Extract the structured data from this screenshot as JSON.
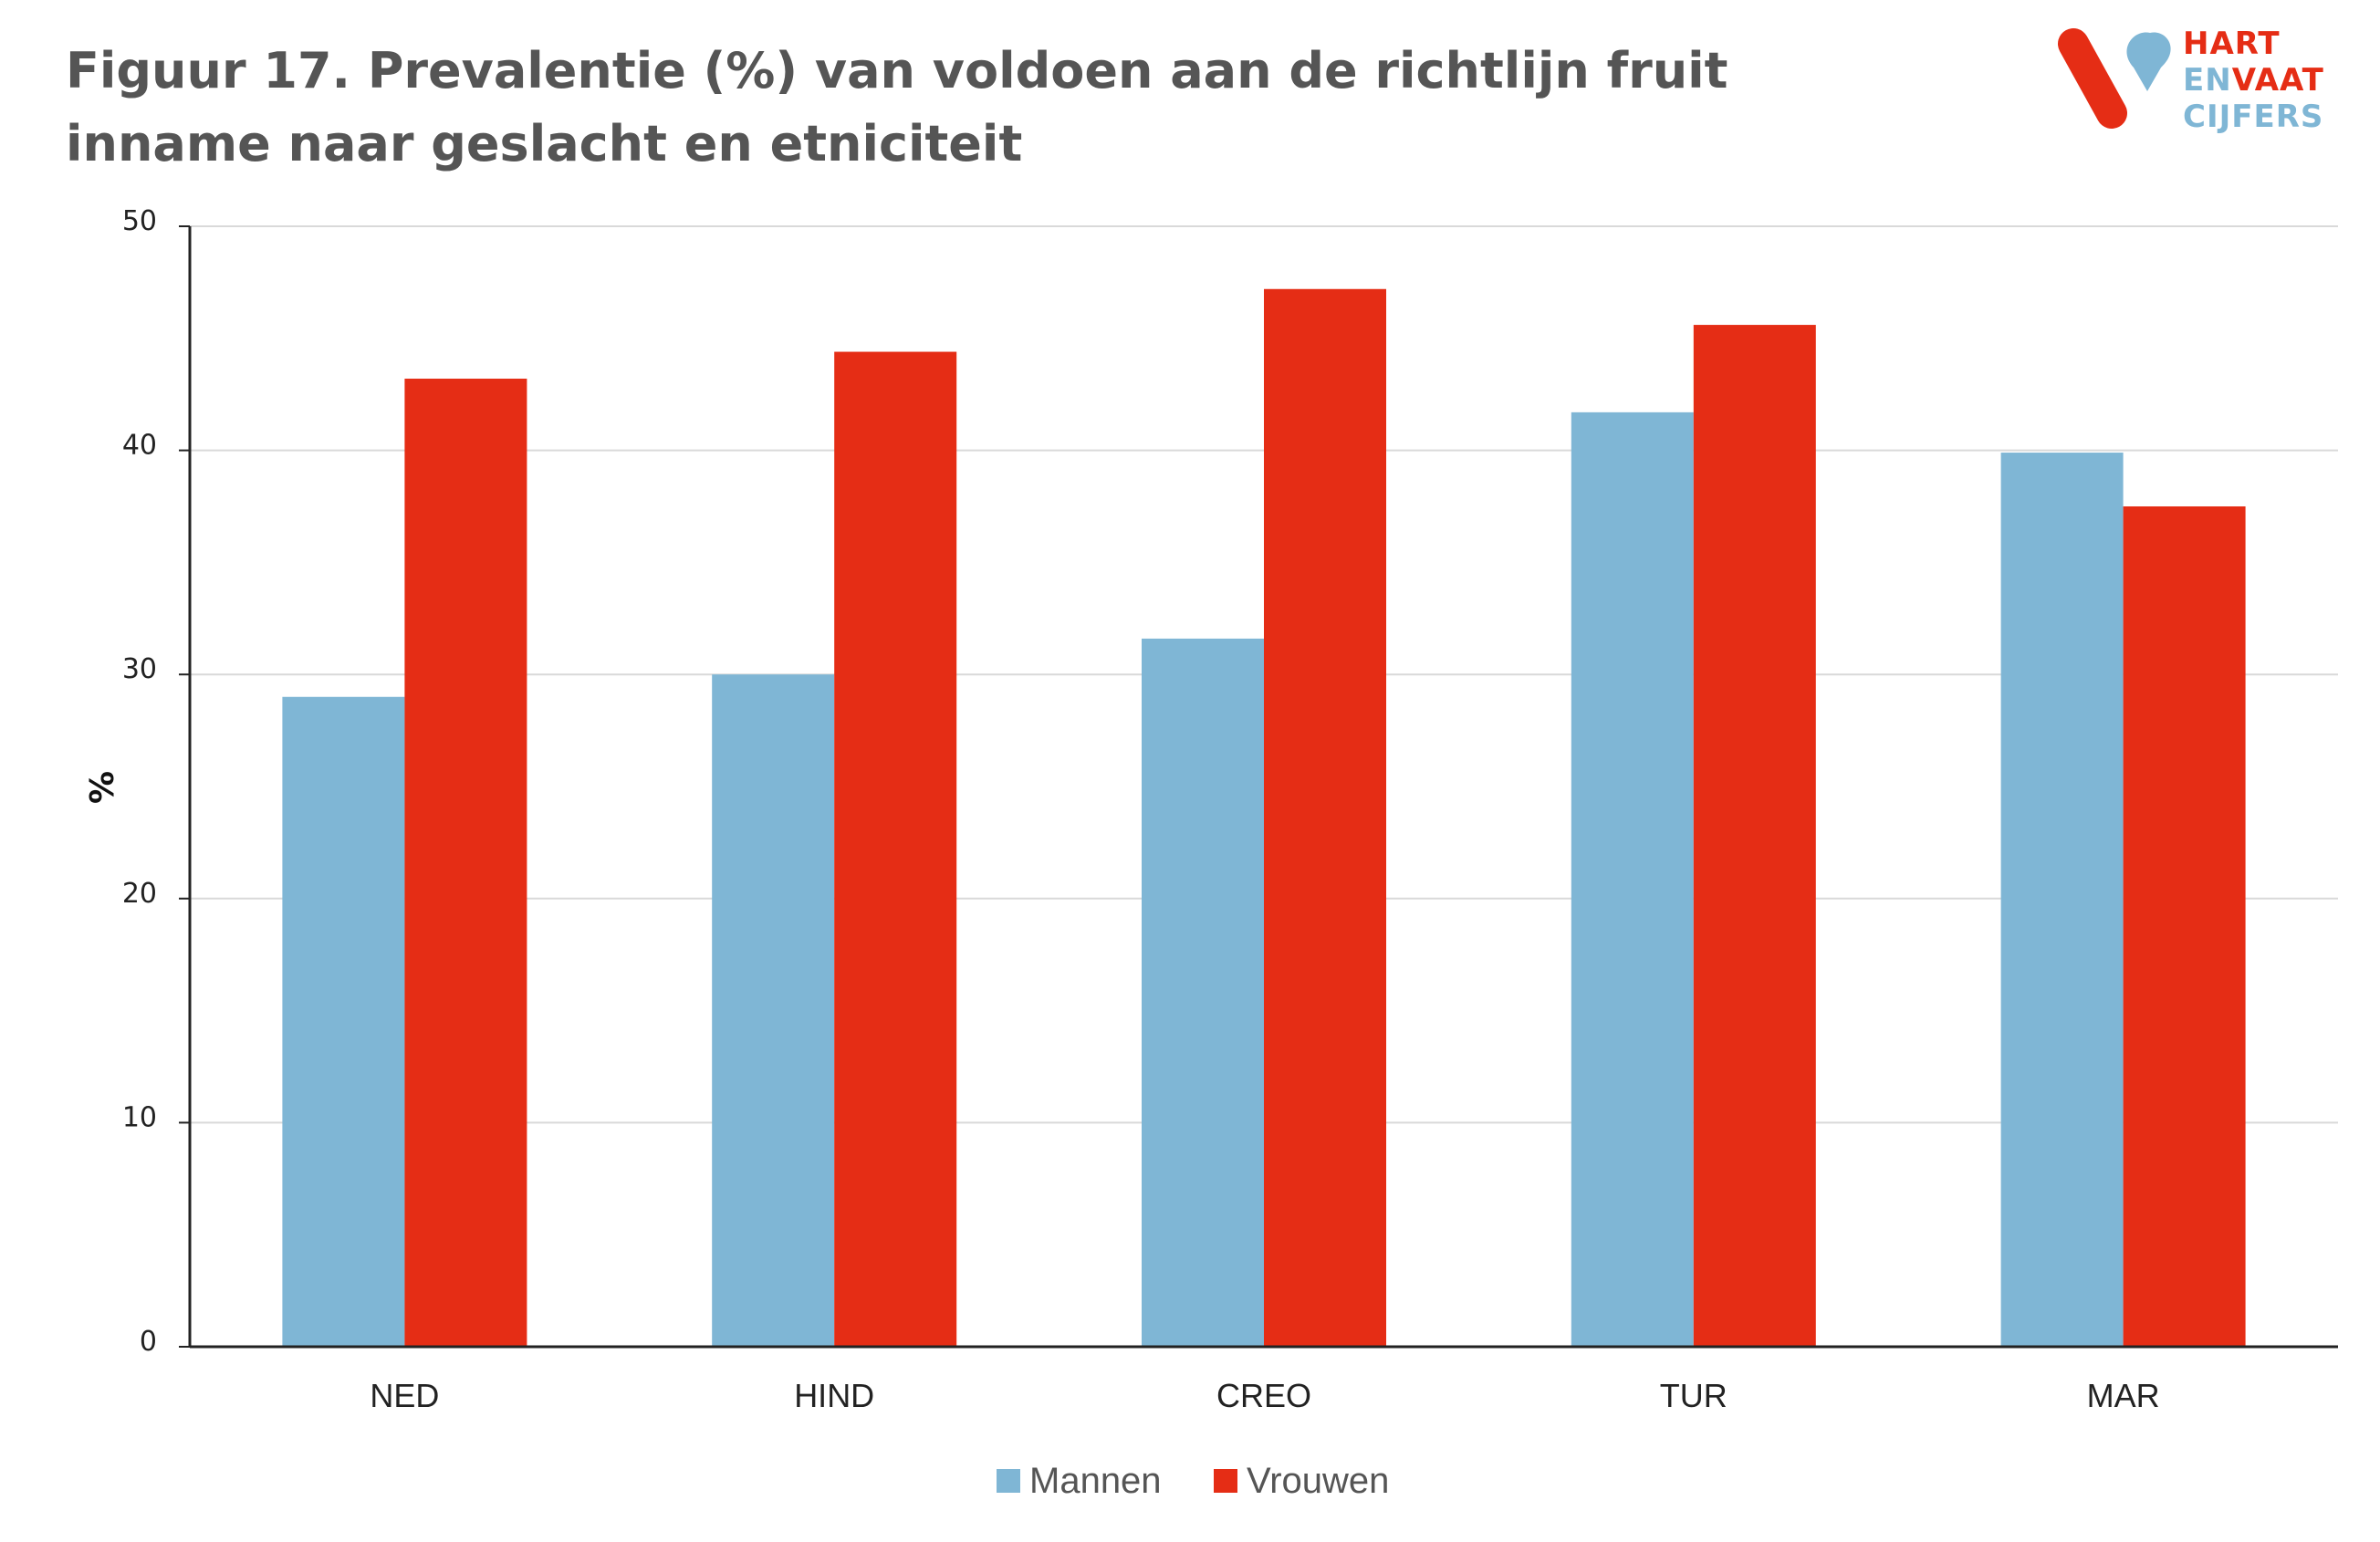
{
  "title": "Figuur 17. Prevalentie (%) van voldoen aan de richtlijn fruit inname naar geslacht en etniciteit",
  "logo": {
    "line1": "HART",
    "line2_a": "EN",
    "line2_b": "VAAT",
    "line3": "CIJFERS"
  },
  "colors": {
    "mannen": "#7fb6d5",
    "vrouwen": "#e52d15",
    "grid": "#d9d9d9",
    "axis": "#222222",
    "title": "#555555"
  },
  "chart_data": {
    "type": "bar",
    "title": "Figuur 17. Prevalentie (%) van voldoen aan de richtlijn fruit inname naar geslacht en etniciteit",
    "xlabel": "",
    "ylabel": "%",
    "ylim": [
      0,
      50
    ],
    "yticks": [
      0,
      10,
      20,
      30,
      40,
      50
    ],
    "grid": true,
    "legend_position": "bottom",
    "categories": [
      "NED",
      "HIND",
      "CREO",
      "TUR",
      "MAR"
    ],
    "series": [
      {
        "name": "Mannen",
        "color": "#7fb6d5",
        "values": [
          29.0,
          30.0,
          31.6,
          41.7,
          39.9
        ]
      },
      {
        "name": "Vrouwen",
        "color": "#e52d15",
        "values": [
          43.2,
          44.4,
          47.2,
          45.6,
          37.5
        ]
      }
    ]
  }
}
